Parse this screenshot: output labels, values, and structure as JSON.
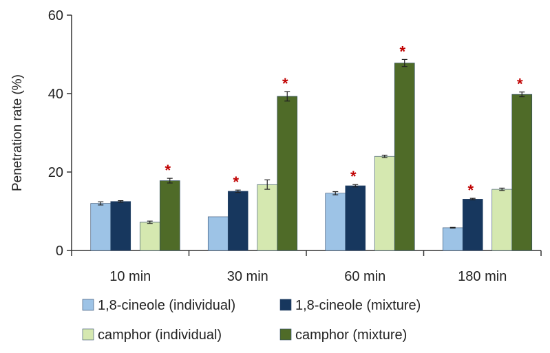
{
  "chart_data": {
    "type": "bar",
    "title": "",
    "xlabel": "",
    "ylabel": "Penetration rate (%)",
    "ylim": [
      0,
      60
    ],
    "yticks": [
      0,
      20,
      40,
      60
    ],
    "grid": false,
    "legend_position": "bottom",
    "categories": [
      "10 min",
      "30 min",
      "60 min",
      "180 min"
    ],
    "significance_marker": "*",
    "significance_color": "#c00000",
    "series": [
      {
        "name": "1,8-cineole (individual)",
        "color": "#9dc3e6",
        "values": [
          12.0,
          8.6,
          14.6,
          5.8
        ],
        "errors": [
          0.4,
          0.0,
          0.4,
          0.1
        ],
        "significant": [
          false,
          false,
          false,
          false
        ]
      },
      {
        "name": "1,8-cineole (mixture)",
        "color": "#17375e",
        "values": [
          12.5,
          15.1,
          16.5,
          13.1
        ],
        "errors": [
          0.2,
          0.3,
          0.3,
          0.2
        ],
        "significant": [
          false,
          true,
          true,
          true
        ]
      },
      {
        "name": "camphor (individual)",
        "color": "#d5e8b0",
        "values": [
          7.2,
          16.8,
          24.0,
          15.6
        ],
        "errors": [
          0.3,
          1.2,
          0.3,
          0.3
        ],
        "significant": [
          false,
          false,
          false,
          false
        ]
      },
      {
        "name": "camphor (mixture)",
        "color": "#4f6b28",
        "values": [
          17.8,
          39.3,
          47.8,
          39.8
        ],
        "errors": [
          0.6,
          1.2,
          0.9,
          0.6
        ],
        "significant": [
          true,
          true,
          true,
          true
        ]
      }
    ]
  }
}
